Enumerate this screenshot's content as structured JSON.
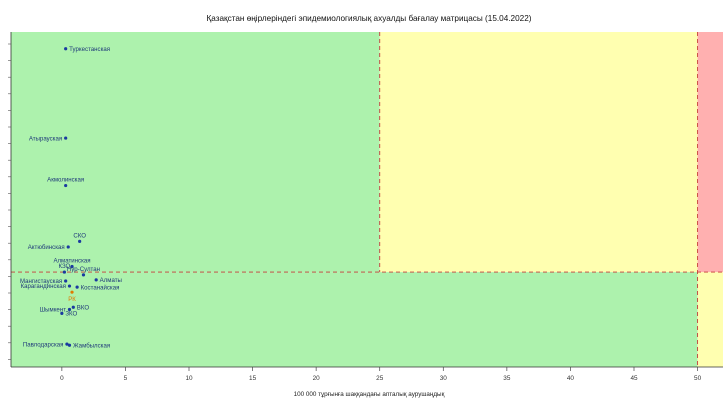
{
  "chart_data": {
    "type": "scatter",
    "title": "Қазақстан өңірлеріндегі эпидемиологиялық ахуалды бағалау матрицасы  (15.04.2022)",
    "xlabel": "100 000 тұрғынға шаққандағы апталық аурушаңдық",
    "ylabel": "",
    "xlim": [
      -4,
      52
    ],
    "x_ticks": [
      0,
      5,
      10,
      15,
      20,
      25,
      30,
      35,
      40,
      45,
      50
    ],
    "x_tick_labels": [
      "0",
      "5",
      "10",
      "15",
      "20",
      "25",
      "30",
      "35",
      "40",
      "45",
      "50"
    ],
    "grid": false,
    "zones": {
      "green": "#adf2ad",
      "yellow": "#ffffb0",
      "red": "#ffb0b0",
      "threshold_line": "#c83c3c",
      "x_thresholds": [
        25,
        50
      ]
    },
    "point_color": "#1a3aa0",
    "highlight_color": "#e07b00",
    "label_color": "#1f3a7a",
    "points": [
      {
        "label": "Туркестанская",
        "x": 0.3,
        "y": 1.1,
        "label_side": "right"
      },
      {
        "label": "Атырауская",
        "x": 0.3,
        "y": 0.94,
        "label_side": "left"
      },
      {
        "label": "Акмолинская",
        "x": 0.3,
        "y": 0.855,
        "label_side": "top"
      },
      {
        "label": "СКО",
        "x": 1.4,
        "y": 0.755,
        "label_side": "top"
      },
      {
        "label": "Актюбинская",
        "x": 0.5,
        "y": 0.745,
        "label_side": "left"
      },
      {
        "label": "Алматинская",
        "x": 0.8,
        "y": 0.71,
        "label_side": "top"
      },
      {
        "label": "КЗО",
        "x": 0.2,
        "y": 0.7,
        "label_side": "top"
      },
      {
        "label": "Нур-Султан",
        "x": 1.7,
        "y": 0.695,
        "label_side": "top"
      },
      {
        "label": "Алматы",
        "x": 2.7,
        "y": 0.686,
        "label_side": "right"
      },
      {
        "label": "Мангистауская",
        "x": 0.3,
        "y": 0.684,
        "label_side": "left"
      },
      {
        "label": "Карагандинская",
        "x": 0.6,
        "y": 0.675,
        "label_side": "left"
      },
      {
        "label": "Костанайская",
        "x": 1.2,
        "y": 0.673,
        "label_side": "right"
      },
      {
        "label": "РК",
        "x": 0.8,
        "y": 0.664,
        "label_side": "bottom",
        "highlight": true
      },
      {
        "label": "ВКО",
        "x": 0.9,
        "y": 0.637,
        "label_side": "right"
      },
      {
        "label": "Шымкент",
        "x": 0.6,
        "y": 0.633,
        "label_side": "left"
      },
      {
        "label": "ЗКО",
        "x": 0.0,
        "y": 0.626,
        "label_side": "right"
      },
      {
        "label": "Павлодарская",
        "x": 0.4,
        "y": 0.571,
        "label_side": "left"
      },
      {
        "label": "Жамбылская",
        "x": 0.6,
        "y": 0.569,
        "label_side": "right"
      }
    ]
  }
}
